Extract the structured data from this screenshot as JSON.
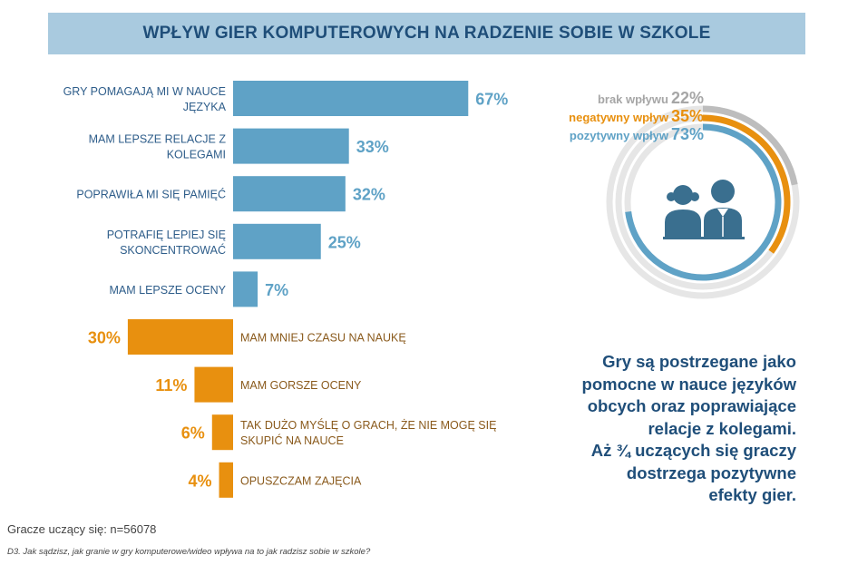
{
  "header": {
    "title": "WPŁYW GIER KOMPUTEROWYCH NA RADZENIE SOBIE W SZKOLE"
  },
  "chart_data": [
    {
      "type": "bar",
      "orientation": "horizontal-diverging",
      "positive": {
        "color": "#5fa2c6",
        "categories": [
          [
            "GRY POMAGAJĄ MI W NAUCE",
            "JĘZYKA"
          ],
          [
            "MAM LEPSZE RELACJE Z",
            "KOLEGAMI"
          ],
          [
            "POPRAWIŁA MI SIĘ PAMIĘĆ"
          ],
          [
            "POTRAFIĘ LEPIEJ SIĘ",
            "SKONCENTROWAĆ"
          ],
          [
            "MAM LEPSZE OCENY"
          ]
        ],
        "values": [
          67,
          33,
          32,
          25,
          7
        ],
        "value_labels": [
          "67%",
          "33%",
          "32%",
          "25%",
          "7%"
        ]
      },
      "negative": {
        "color": "#e8900f",
        "categories": [
          [
            "MAM MNIEJ CZASU NA NAUKĘ"
          ],
          [
            "MAM GORSZE OCENY"
          ],
          [
            "TAK DUŻO MYŚLĘ O GRACH, ŻE NIE MOGĘ SIĘ",
            "SKUPIĆ NA NAUCE"
          ],
          [
            "OPUSZCZAM ZAJĘCIA"
          ]
        ],
        "values": [
          30,
          11,
          6,
          4
        ],
        "value_labels": [
          "30%",
          "11%",
          "6%",
          "4%"
        ]
      }
    },
    {
      "type": "radial",
      "series": [
        {
          "label": "brak wpływu",
          "value": 22,
          "pct_label": "22%",
          "color": "#bdbdbd"
        },
        {
          "label": "negatywny wpływ",
          "value": 35,
          "pct_label": "35%",
          "color": "#e8900f"
        },
        {
          "label": "pozytywny wpływ",
          "value": 73,
          "pct_label": "73%",
          "color": "#5fa2c6"
        }
      ],
      "track_color": "#e6e6e6",
      "center_icon": "students-icon"
    }
  ],
  "summary": {
    "lines": [
      "Gry są postrzegane jako",
      "pomocne w nauce języków",
      "obcych oraz poprawiające",
      "relacje z kolegami.",
      "Aż ¾ uczących się graczy",
      "dostrzega pozytywne",
      "efekty gier."
    ]
  },
  "footer": {
    "sample": "Gracze uczący się: n=56078",
    "question": "D3. Jak sądzisz, jak granie w gry komputerowe/wideo wpływa na to jak radzisz sobie w szkole?"
  }
}
